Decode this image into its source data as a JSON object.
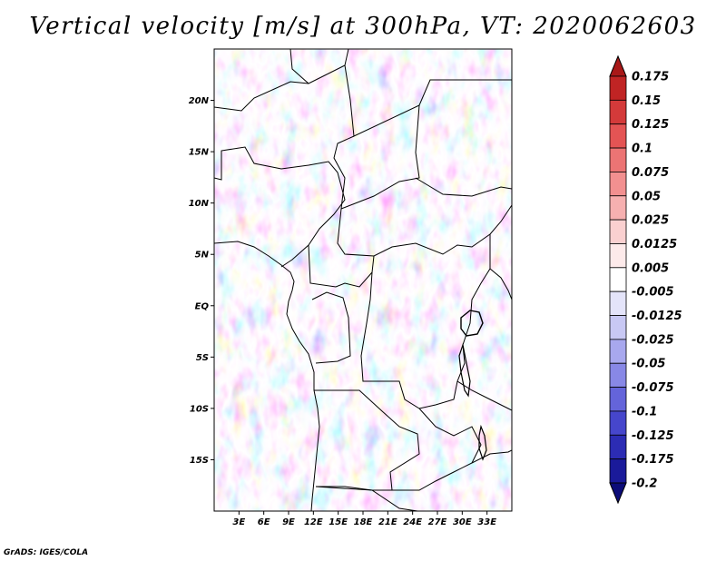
{
  "title": "Vertical velocity [m/s] at 300hPa, VT: 2020062603",
  "footer": "GrADS: IGES/COLA",
  "map": {
    "lon_range": [
      0,
      36
    ],
    "lat_range": [
      -20,
      25
    ],
    "lat_ticks": [
      {
        "value": 20,
        "label": "20N"
      },
      {
        "value": 15,
        "label": "15N"
      },
      {
        "value": 10,
        "label": "10N"
      },
      {
        "value": 5,
        "label": "5N"
      },
      {
        "value": 0,
        "label": "EQ"
      },
      {
        "value": -5,
        "label": "5S"
      },
      {
        "value": -10,
        "label": "10S"
      },
      {
        "value": -15,
        "label": "15S"
      }
    ],
    "lon_ticks": [
      {
        "value": 3,
        "label": "3E"
      },
      {
        "value": 6,
        "label": "6E"
      },
      {
        "value": 9,
        "label": "9E"
      },
      {
        "value": 12,
        "label": "12E"
      },
      {
        "value": 15,
        "label": "15E"
      },
      {
        "value": 18,
        "label": "18E"
      },
      {
        "value": 21,
        "label": "21E"
      },
      {
        "value": 24,
        "label": "24E"
      },
      {
        "value": 27,
        "label": "27E"
      },
      {
        "value": 30,
        "label": "30E"
      },
      {
        "value": 33,
        "label": "33E"
      }
    ]
  },
  "colorbar": {
    "levels": [
      "0.175",
      "0.15",
      "0.125",
      "0.1",
      "0.075",
      "0.05",
      "0.025",
      "0.0125",
      "0.005",
      "-0.005",
      "-0.0125",
      "-0.025",
      "-0.05",
      "-0.075",
      "-0.1",
      "-0.125",
      "-0.175",
      "-0.2"
    ],
    "colors": [
      "#a81818",
      "#c02424",
      "#d43a3a",
      "#e45454",
      "#ec7474",
      "#f29090",
      "#f6b0b0",
      "#fad0d0",
      "#fdeaea",
      "#ffffff",
      "#e4e4fa",
      "#c8c8f4",
      "#a8a8ee",
      "#8888e6",
      "#6464da",
      "#4646cc",
      "#2c2cb4",
      "#1a1a9a",
      "#0c0c78"
    ]
  }
}
